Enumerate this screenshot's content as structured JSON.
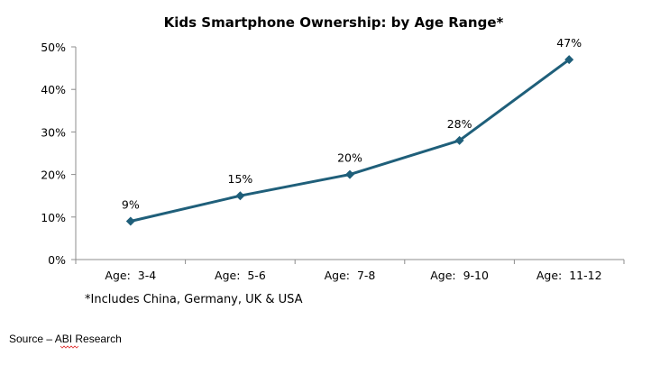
{
  "chart_data": {
    "type": "line",
    "title": "Kids Smartphone Ownership: by Age Range*",
    "categories": [
      "Age:  3-4",
      "Age:  5-6",
      "Age:  7-8",
      "Age:  9-10",
      "Age:  11-12"
    ],
    "series": [
      {
        "values": [
          9,
          15,
          20,
          28,
          47
        ],
        "data_labels": [
          "9%",
          "15%",
          "20%",
          "28%",
          "47%"
        ],
        "color": "#1f5f7a",
        "marker": "diamond"
      }
    ],
    "y_ticks": [
      0,
      10,
      20,
      30,
      40,
      50
    ],
    "y_tick_labels": [
      "0%",
      "10%",
      "20%",
      "30%",
      "40%",
      "50%"
    ],
    "ylim": [
      0,
      50
    ],
    "xlabel": "",
    "ylabel": "",
    "grid": false,
    "legend": "none",
    "footnote": "*Includes China, Germany, UK & USA"
  },
  "source_note": {
    "prefix": "Source – ",
    "name": "ABI",
    "suffix": " Research"
  }
}
